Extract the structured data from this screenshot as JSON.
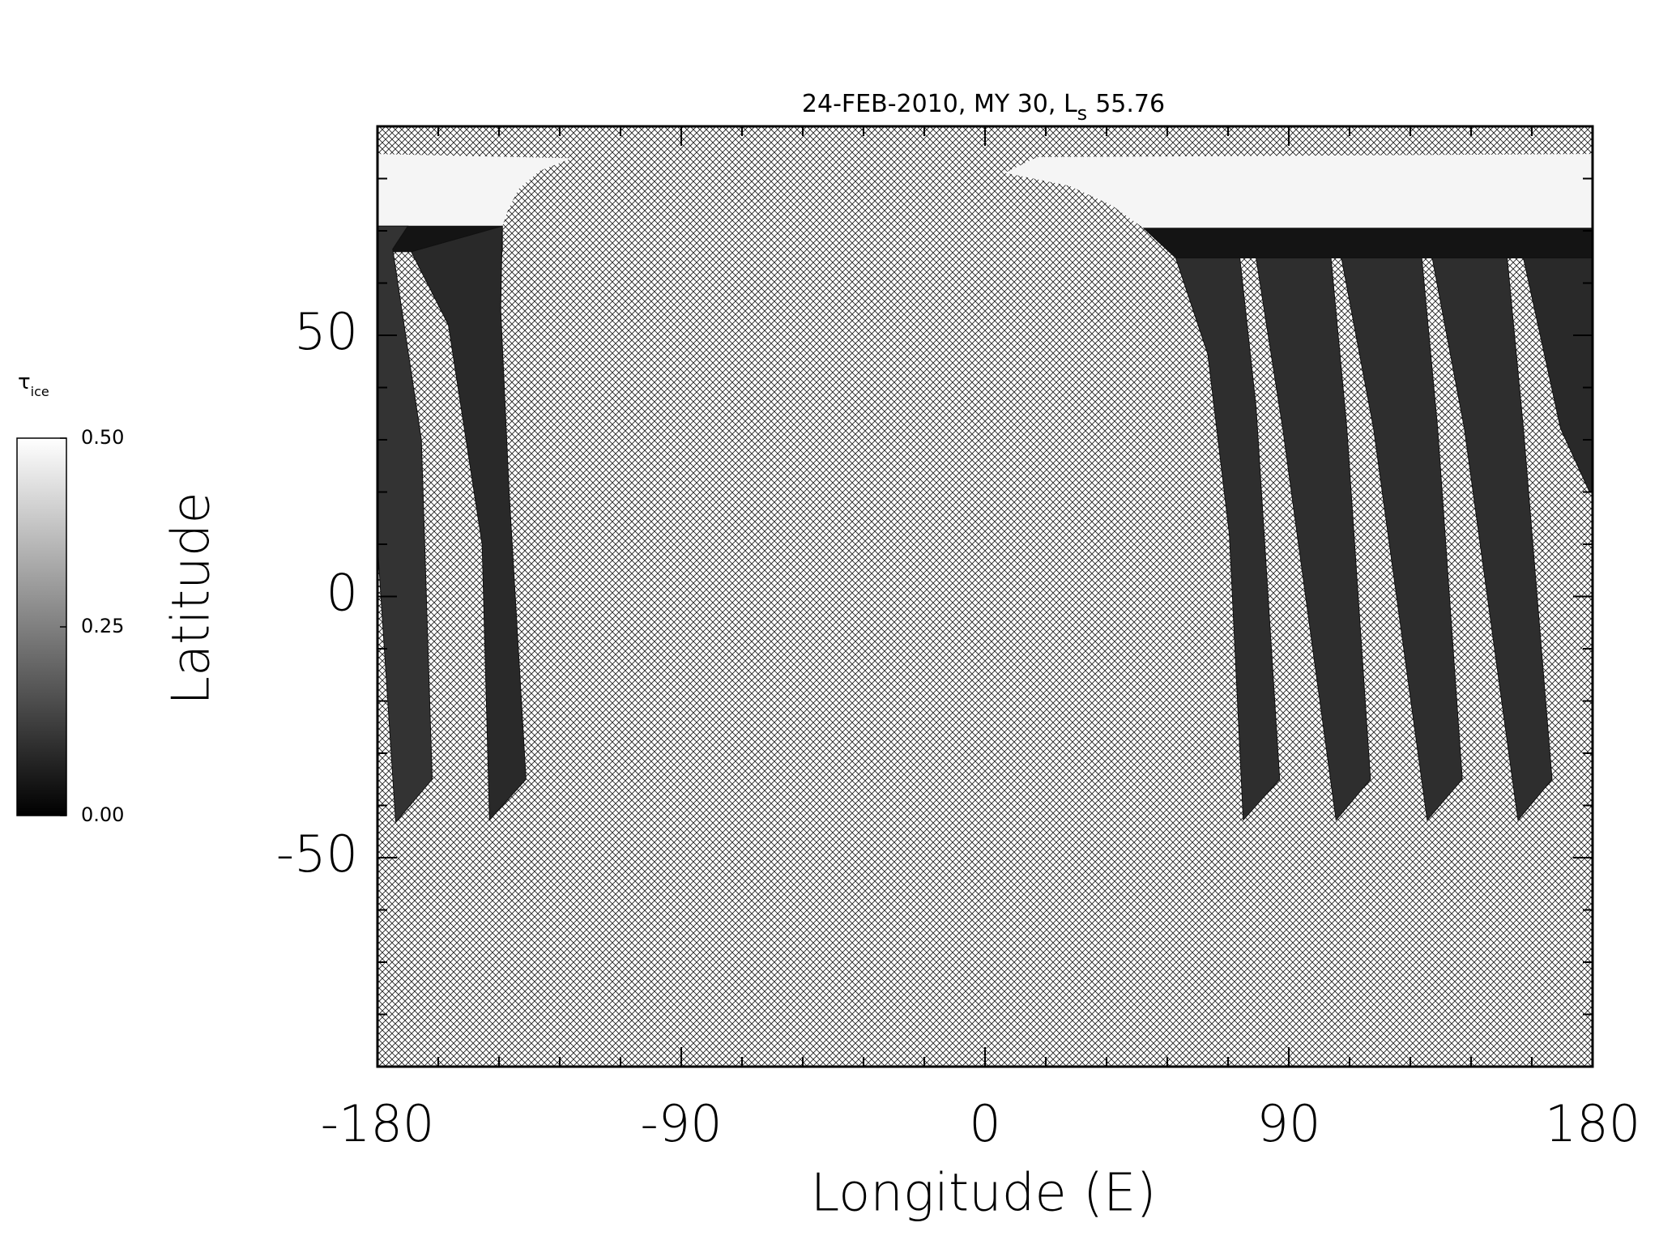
{
  "chart_data": {
    "type": "map",
    "title": "24-FEB-2010, MY 30,  L",
    "title_subscript": "s",
    "title_value": "55.76",
    "x_label": "Longitude (E)",
    "y_label": "Latitude",
    "xlim": [
      -180,
      180
    ],
    "ylim": [
      -90,
      90
    ],
    "xticks": [
      -180,
      -90,
      0,
      90,
      180
    ],
    "yticks": [
      -50,
      0,
      50
    ],
    "xminorticks": [
      -162,
      -144,
      -126,
      -108,
      -72,
      -54,
      -36,
      -18,
      18,
      36,
      54,
      72,
      108,
      126,
      144,
      162
    ],
    "yminorticks": [
      -80,
      -70,
      -60,
      -40,
      -30,
      -20,
      -10,
      10,
      20,
      30,
      40,
      60,
      70,
      80
    ],
    "colorbar": {
      "label": "τ",
      "label_subscript": "ice",
      "clim": [
        0,
        0.5
      ],
      "ticks": [
        {
          "value": 0,
          "label": "0.00"
        },
        {
          "value": 0.25,
          "label": "0.25"
        },
        {
          "value": 0.5,
          "label": "0.50"
        }
      ]
    },
    "regions": [
      {
        "tau": 0.48,
        "lon": [
          -180,
          -122.4,
          -131.9,
          -138.2,
          -141.4,
          -143,
          -180
        ],
        "lat": [
          84.7,
          83.9,
          81.5,
          78.0,
          73.9,
          70.9,
          70.9
        ]
      },
      {
        "tau": 0.48,
        "lon": [
          5.9,
          15.4,
          180,
          180,
          47,
          37.5,
          25
        ],
        "lat": [
          81.1,
          84.1,
          84.7,
          70.5,
          70.5,
          74.9,
          78.6
        ]
      },
      {
        "tau": 0.04,
        "lon": [
          -180,
          -143,
          -143,
          -180
        ],
        "lat": [
          70.9,
          70.9,
          66,
          66
        ]
      },
      {
        "tau": 0.04,
        "lon": [
          47,
          180,
          180,
          56.5
        ],
        "lat": [
          70.5,
          70.5,
          64.8,
          64.8
        ]
      },
      {
        "tau": 0.1,
        "lon": [
          -180,
          -171,
          -175.5,
          -167,
          -163.8,
          -174.6,
          -180
        ],
        "lat": [
          70.9,
          70.9,
          66.5,
          30,
          -35,
          -43.2,
          10
        ]
      },
      {
        "tau": 0.08,
        "lon": [
          -170,
          -143,
          -143.5,
          -141,
          -136,
          -146.8,
          -149,
          -159
        ],
        "lat": [
          66,
          70.9,
          55,
          20,
          -35,
          -42.8,
          10,
          52
        ]
      },
      {
        "tau": 0.09,
        "lon": [
          56.5,
          75.5,
          80.3,
          87.3,
          76.5,
          72.4,
          66.0
        ],
        "lat": [
          64.8,
          64.8,
          36.3,
          -35,
          -42.8,
          11.8,
          46.4
        ]
      },
      {
        "tau": 0.09,
        "lon": [
          80.3,
          102.5,
          107.2,
          114.2,
          104.0,
          88.2
        ],
        "lat": [
          64.8,
          64.8,
          32.2,
          -35,
          -42.8,
          32.2
        ]
      },
      {
        "tau": 0.09,
        "lon": [
          105.6,
          129.4,
          134.1,
          141.4,
          131.0,
          115.1
        ],
        "lat": [
          64.8,
          64.8,
          32.2,
          -35,
          -42.8,
          32.2
        ]
      },
      {
        "tau": 0.09,
        "lon": [
          132.5,
          154.7,
          159.5,
          168.0,
          157.9,
          142.0
        ],
        "lat": [
          64.8,
          64.8,
          32.2,
          -35,
          -42.8,
          32.2
        ]
      },
      {
        "tau": 0.08,
        "lon": [
          159.5,
          180,
          180,
          179.1,
          170.5
        ],
        "lat": [
          64.8,
          64.8,
          20,
          20,
          32.2
        ]
      }
    ]
  }
}
